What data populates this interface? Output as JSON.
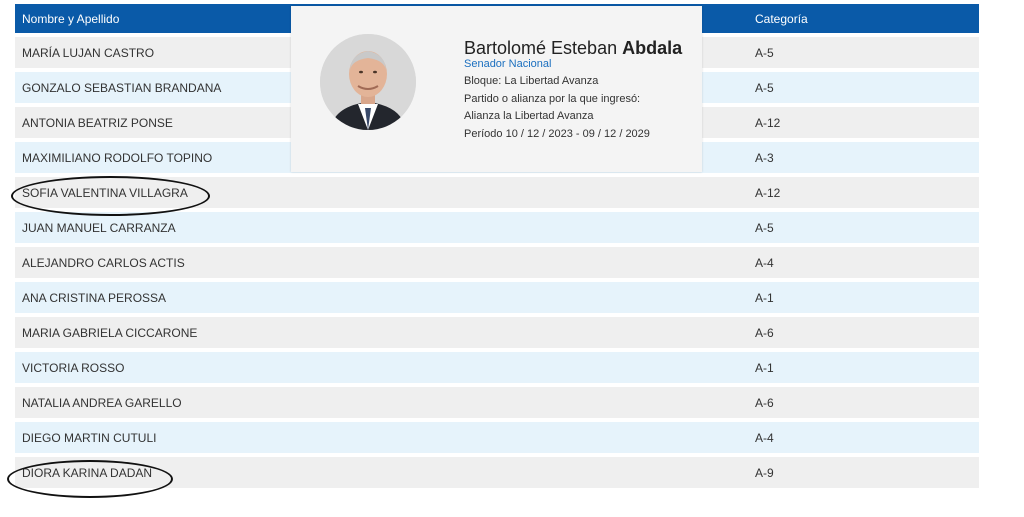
{
  "table": {
    "headers": [
      "Nombre y Apellido",
      "Categoría"
    ],
    "rows": [
      {
        "name": "MARÍA LUJAN CASTRO",
        "cat": "A-5"
      },
      {
        "name": "GONZALO SEBASTIAN BRANDANA",
        "cat": "A-5"
      },
      {
        "name": "ANTONIA BEATRIZ PONSE",
        "cat": "A-12"
      },
      {
        "name": "MAXIMILIANO RODOLFO TOPINO",
        "cat": "A-3"
      },
      {
        "name": "SOFIA VALENTINA VILLAGRA",
        "cat": "A-12"
      },
      {
        "name": "JUAN MANUEL CARRANZA",
        "cat": "A-5"
      },
      {
        "name": "ALEJANDRO CARLOS ACTIS",
        "cat": "A-4"
      },
      {
        "name": "ANA CRISTINA PEROSSA",
        "cat": "A-1"
      },
      {
        "name": "MARIA GABRIELA CICCARONE",
        "cat": "A-6"
      },
      {
        "name": "VICTORIA ROSSO",
        "cat": "A-1"
      },
      {
        "name": "NATALIA ANDREA GARELLO",
        "cat": "A-6"
      },
      {
        "name": "DIEGO MARTIN CUTULI",
        "cat": "A-4"
      },
      {
        "name": "DIORA KARINA DADAN",
        "cat": "A-9"
      }
    ]
  },
  "card": {
    "first_name": "Bartolomé Esteban ",
    "last_name": "Abdala",
    "role": "Senador Nacional",
    "bloque": "Bloque: La Libertad Avanza",
    "partido_label": "Partido o alianza por la que ingresó:",
    "partido": "Alianza la Libertad Avanza",
    "periodo": "Período 10 / 12 / 2023 - 09 / 12 / 2029"
  },
  "colors": {
    "header_bg": "#0a5aa8",
    "row_odd": "#efefef",
    "row_even": "#e6f3fb",
    "role_text": "#1b6fbf"
  }
}
